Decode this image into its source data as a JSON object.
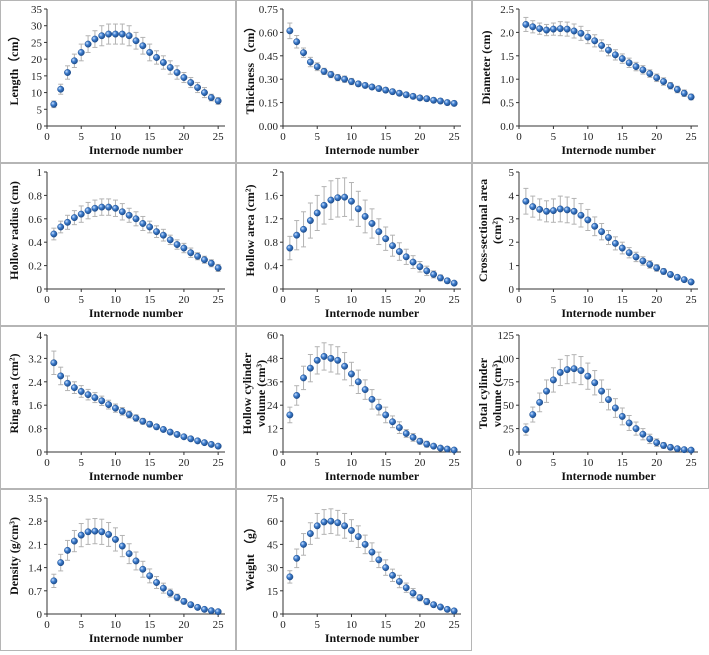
{
  "colors": {
    "marker": "#3f7fd0",
    "marker_edge": "#1f4f8f",
    "errorbar": "#b3b3b3",
    "axis": "#333333",
    "panel_border": "#b5b5b5"
  },
  "chart_data": [
    {
      "type": "scatter",
      "xlabel": "Internode number",
      "ylabel": "Length（cm）",
      "xlim": [
        0,
        26
      ],
      "ylim": [
        0,
        35
      ],
      "xticks": [
        0,
        5,
        10,
        15,
        20,
        25
      ],
      "yticks": [
        0,
        5,
        10,
        15,
        20,
        25,
        30,
        35
      ],
      "grid": false,
      "x": [
        1,
        2,
        3,
        4,
        5,
        6,
        7,
        8,
        9,
        10,
        11,
        12,
        13,
        14,
        15,
        16,
        17,
        18,
        19,
        20,
        21,
        22,
        23,
        24,
        25
      ],
      "y": [
        6.5,
        11,
        16,
        19.5,
        22,
        24.5,
        26,
        27,
        27.5,
        27.5,
        27.5,
        27,
        25.5,
        24,
        22,
        20.5,
        19,
        17.5,
        16,
        14.5,
        13,
        11.5,
        10,
        8.5,
        7.5
      ],
      "err": [
        1,
        1.5,
        2,
        2,
        2.5,
        2.5,
        2.5,
        3,
        3,
        3,
        3,
        3,
        2.5,
        2.5,
        2.5,
        2,
        2,
        2,
        2,
        1.5,
        1.5,
        1.5,
        1.5,
        1,
        1
      ]
    },
    {
      "type": "scatter",
      "xlabel": "Internode number",
      "ylabel": "Thickness （cm）",
      "xlim": [
        0,
        26
      ],
      "ylim": [
        0,
        0.75
      ],
      "xticks": [
        0,
        5,
        10,
        15,
        20,
        25
      ],
      "yticks": [
        "0.00",
        "0.15",
        "0.30",
        "0.45",
        "0.60",
        "0.75"
      ],
      "grid": false,
      "x": [
        1,
        2,
        3,
        4,
        5,
        6,
        7,
        8,
        9,
        10,
        11,
        12,
        13,
        14,
        15,
        16,
        17,
        18,
        19,
        20,
        21,
        22,
        23,
        24,
        25
      ],
      "y": [
        0.61,
        0.54,
        0.47,
        0.41,
        0.38,
        0.35,
        0.33,
        0.31,
        0.3,
        0.285,
        0.27,
        0.26,
        0.25,
        0.24,
        0.23,
        0.22,
        0.21,
        0.2,
        0.19,
        0.18,
        0.175,
        0.165,
        0.16,
        0.15,
        0.145
      ],
      "err": [
        0.05,
        0.04,
        0.03,
        0.03,
        0.025,
        0.02,
        0.02,
        0.02,
        0.02,
        0.02,
        0.015,
        0.015,
        0.015,
        0.015,
        0.015,
        0.015,
        0.015,
        0.015,
        0.015,
        0.015,
        0.015,
        0.015,
        0.015,
        0.015,
        0.015
      ]
    },
    {
      "type": "scatter",
      "xlabel": "Internode number",
      "ylabel": "Diameter (cm)",
      "xlim": [
        0,
        26
      ],
      "ylim": [
        0,
        2.5
      ],
      "xticks": [
        0,
        5,
        10,
        15,
        20,
        25
      ],
      "yticks": [
        "0.0",
        "0.5",
        "1.0",
        "1.5",
        "2.0",
        "2.5"
      ],
      "grid": false,
      "x": [
        1,
        2,
        3,
        4,
        5,
        6,
        7,
        8,
        9,
        10,
        11,
        12,
        13,
        14,
        15,
        16,
        17,
        18,
        19,
        20,
        21,
        22,
        23,
        24,
        25
      ],
      "y": [
        2.17,
        2.12,
        2.08,
        2.05,
        2.07,
        2.08,
        2.07,
        2.03,
        1.98,
        1.9,
        1.82,
        1.72,
        1.62,
        1.52,
        1.44,
        1.35,
        1.27,
        1.2,
        1.12,
        1.03,
        0.95,
        0.86,
        0.78,
        0.7,
        0.62
      ],
      "err": [
        0.15,
        0.13,
        0.12,
        0.12,
        0.13,
        0.15,
        0.15,
        0.15,
        0.15,
        0.14,
        0.13,
        0.12,
        0.12,
        0.11,
        0.1,
        0.1,
        0.09,
        0.09,
        0.08,
        0.08,
        0.08,
        0.07,
        0.07,
        0.07,
        0.06
      ]
    },
    {
      "type": "scatter",
      "xlabel": "Internode number",
      "ylabel": "Hollow radius (cm)",
      "xlim": [
        0,
        26
      ],
      "ylim": [
        0,
        1
      ],
      "xticks": [
        0,
        5,
        10,
        15,
        20,
        25
      ],
      "yticks": [
        "0",
        "0.2",
        "0.4",
        "0.6",
        "0.8",
        "1"
      ],
      "grid": false,
      "x": [
        1,
        2,
        3,
        4,
        5,
        6,
        7,
        8,
        9,
        10,
        11,
        12,
        13,
        14,
        15,
        16,
        17,
        18,
        19,
        20,
        21,
        22,
        23,
        24,
        25
      ],
      "y": [
        0.47,
        0.53,
        0.57,
        0.61,
        0.64,
        0.67,
        0.69,
        0.7,
        0.7,
        0.69,
        0.66,
        0.63,
        0.6,
        0.56,
        0.53,
        0.49,
        0.46,
        0.42,
        0.38,
        0.35,
        0.31,
        0.28,
        0.25,
        0.22,
        0.18
      ],
      "err": [
        0.05,
        0.05,
        0.06,
        0.06,
        0.07,
        0.07,
        0.07,
        0.07,
        0.07,
        0.07,
        0.07,
        0.06,
        0.06,
        0.06,
        0.05,
        0.05,
        0.05,
        0.04,
        0.04,
        0.04,
        0.04,
        0.03,
        0.03,
        0.03,
        0.03
      ]
    },
    {
      "type": "scatter",
      "xlabel": "Internode number",
      "ylabel": "Hollow area (cm²)",
      "xlim": [
        0,
        26
      ],
      "ylim": [
        0,
        2
      ],
      "xticks": [
        0,
        5,
        10,
        15,
        20,
        25
      ],
      "yticks": [
        "0",
        "0.4",
        "0.8",
        "1.2",
        "1.6",
        "2"
      ],
      "grid": false,
      "x": [
        1,
        2,
        3,
        4,
        5,
        6,
        7,
        8,
        9,
        10,
        11,
        12,
        13,
        14,
        15,
        16,
        17,
        18,
        19,
        20,
        21,
        22,
        23,
        24,
        25
      ],
      "y": [
        0.7,
        0.92,
        1.02,
        1.17,
        1.3,
        1.43,
        1.52,
        1.56,
        1.57,
        1.5,
        1.37,
        1.24,
        1.12,
        0.98,
        0.86,
        0.74,
        0.64,
        0.55,
        0.46,
        0.38,
        0.31,
        0.25,
        0.19,
        0.14,
        0.1
      ],
      "err": [
        0.2,
        0.25,
        0.3,
        0.3,
        0.3,
        0.32,
        0.33,
        0.33,
        0.33,
        0.32,
        0.3,
        0.28,
        0.25,
        0.22,
        0.2,
        0.18,
        0.15,
        0.13,
        0.11,
        0.09,
        0.08,
        0.06,
        0.05,
        0.04,
        0.03
      ]
    },
    {
      "type": "scatter",
      "xlabel": "Internode number",
      "ylabel": "Cross-sectional area (cm²)",
      "xlim": [
        0,
        26
      ],
      "ylim": [
        0,
        5
      ],
      "xticks": [
        0,
        5,
        10,
        15,
        20,
        25
      ],
      "yticks": [
        "0",
        "1",
        "2",
        "3",
        "4",
        "5"
      ],
      "grid": false,
      "x": [
        1,
        2,
        3,
        4,
        5,
        6,
        7,
        8,
        9,
        10,
        11,
        12,
        13,
        14,
        15,
        16,
        17,
        18,
        19,
        20,
        21,
        22,
        23,
        24,
        25
      ],
      "y": [
        3.75,
        3.52,
        3.4,
        3.32,
        3.35,
        3.42,
        3.38,
        3.32,
        3.15,
        2.95,
        2.68,
        2.45,
        2.2,
        1.95,
        1.75,
        1.55,
        1.37,
        1.2,
        1.05,
        0.9,
        0.75,
        0.62,
        0.5,
        0.4,
        0.3
      ],
      "err": [
        0.55,
        0.45,
        0.45,
        0.45,
        0.5,
        0.55,
        0.55,
        0.55,
        0.5,
        0.45,
        0.4,
        0.35,
        0.3,
        0.28,
        0.25,
        0.22,
        0.2,
        0.18,
        0.16,
        0.14,
        0.12,
        0.1,
        0.08,
        0.07,
        0.06
      ]
    },
    {
      "type": "scatter",
      "xlabel": "Internode number",
      "ylabel": "Ring area (cm²)",
      "xlim": [
        0,
        26
      ],
      "ylim": [
        0,
        4
      ],
      "xticks": [
        0,
        5,
        10,
        15,
        20,
        25
      ],
      "yticks": [
        "0",
        "0.8",
        "1.6",
        "2.4",
        "3.2",
        "4"
      ],
      "grid": false,
      "x": [
        1,
        2,
        3,
        4,
        5,
        6,
        7,
        8,
        9,
        10,
        11,
        12,
        13,
        14,
        15,
        16,
        17,
        18,
        19,
        20,
        21,
        22,
        23,
        24,
        25
      ],
      "y": [
        3.05,
        2.6,
        2.35,
        2.2,
        2.07,
        1.96,
        1.86,
        1.75,
        1.62,
        1.5,
        1.39,
        1.28,
        1.16,
        1.05,
        0.95,
        0.86,
        0.77,
        0.68,
        0.6,
        0.52,
        0.45,
        0.38,
        0.32,
        0.26,
        0.2
      ],
      "err": [
        0.4,
        0.3,
        0.25,
        0.2,
        0.2,
        0.18,
        0.17,
        0.16,
        0.15,
        0.14,
        0.13,
        0.12,
        0.11,
        0.1,
        0.09,
        0.08,
        0.07,
        0.06,
        0.06,
        0.05,
        0.05,
        0.04,
        0.04,
        0.04,
        0.03
      ]
    },
    {
      "type": "scatter",
      "xlabel": "Internode number",
      "ylabel": "Hollow cylinder volume (cm³)",
      "xlim": [
        0,
        26
      ],
      "ylim": [
        0,
        60
      ],
      "xticks": [
        0,
        5,
        10,
        15,
        20,
        25
      ],
      "yticks": [
        "0",
        "12",
        "24",
        "36",
        "48",
        "60"
      ],
      "grid": false,
      "x": [
        1,
        2,
        3,
        4,
        5,
        6,
        7,
        8,
        9,
        10,
        11,
        12,
        13,
        14,
        15,
        16,
        17,
        18,
        19,
        20,
        21,
        22,
        23,
        24,
        25
      ],
      "y": [
        19,
        29,
        38,
        43,
        47,
        49,
        48,
        47,
        44,
        40,
        36,
        32,
        27,
        23,
        19,
        15.5,
        12.5,
        9.5,
        7.5,
        5.5,
        4,
        3,
        2,
        1.5,
        1
      ],
      "err": [
        4,
        5,
        6,
        7,
        7,
        7,
        7,
        7,
        7,
        6,
        6,
        5,
        5,
        4,
        4,
        3,
        3,
        2,
        2,
        1.5,
        1.5,
        1,
        1,
        1,
        0.5
      ]
    },
    {
      "type": "scatter",
      "xlabel": "Internode number",
      "ylabel": "Total cylinder volume (cm³)",
      "xlim": [
        0,
        26
      ],
      "ylim": [
        0,
        125
      ],
      "xticks": [
        0,
        5,
        10,
        15,
        20,
        25
      ],
      "yticks": [
        "0",
        "25",
        "50",
        "75",
        "100",
        "125"
      ],
      "grid": false,
      "x": [
        1,
        2,
        3,
        4,
        5,
        6,
        7,
        8,
        9,
        10,
        11,
        12,
        13,
        14,
        15,
        16,
        17,
        18,
        19,
        20,
        21,
        22,
        23,
        24,
        25
      ],
      "y": [
        24,
        40,
        53,
        65,
        77,
        85,
        88,
        89,
        87,
        81,
        74,
        65,
        56,
        47,
        38,
        31,
        25,
        19,
        14,
        10,
        7,
        5,
        3.5,
        2.5,
        2
      ],
      "err": [
        6,
        8,
        10,
        12,
        13,
        14,
        15,
        15,
        15,
        14,
        13,
        12,
        11,
        10,
        9,
        8,
        7,
        6,
        5,
        4,
        3,
        2.5,
        2,
        1.5,
        1
      ]
    },
    {
      "type": "scatter",
      "xlabel": "Internode number",
      "ylabel": "Density (g/cm³)",
      "xlim": [
        0,
        26
      ],
      "ylim": [
        0,
        3.5
      ],
      "xticks": [
        0,
        5,
        10,
        15,
        20,
        25
      ],
      "yticks": [
        "0",
        "0.7",
        "1.4",
        "2.1",
        "2.8",
        "3.5"
      ],
      "grid": false,
      "x": [
        1,
        2,
        3,
        4,
        5,
        6,
        7,
        8,
        9,
        10,
        11,
        12,
        13,
        14,
        15,
        16,
        17,
        18,
        19,
        20,
        21,
        22,
        23,
        24,
        25
      ],
      "y": [
        1.0,
        1.55,
        1.92,
        2.2,
        2.38,
        2.48,
        2.5,
        2.48,
        2.4,
        2.25,
        2.05,
        1.82,
        1.6,
        1.35,
        1.15,
        0.95,
        0.78,
        0.63,
        0.5,
        0.38,
        0.28,
        0.2,
        0.14,
        0.1,
        0.07
      ],
      "err": [
        0.2,
        0.25,
        0.3,
        0.32,
        0.35,
        0.38,
        0.38,
        0.38,
        0.36,
        0.35,
        0.32,
        0.3,
        0.27,
        0.24,
        0.21,
        0.18,
        0.15,
        0.12,
        0.1,
        0.08,
        0.06,
        0.05,
        0.04,
        0.03,
        0.02
      ]
    },
    {
      "type": "scatter",
      "xlabel": "Internode number",
      "ylabel": "Weight （g）",
      "xlim": [
        0,
        26
      ],
      "ylim": [
        0,
        75
      ],
      "xticks": [
        0,
        5,
        10,
        15,
        20,
        25
      ],
      "yticks": [
        "0",
        "15",
        "30",
        "45",
        "60",
        "75"
      ],
      "grid": false,
      "x": [
        1,
        2,
        3,
        4,
        5,
        6,
        7,
        8,
        9,
        10,
        11,
        12,
        13,
        14,
        15,
        16,
        17,
        18,
        19,
        20,
        21,
        22,
        23,
        24,
        25
      ],
      "y": [
        24,
        36,
        45,
        52,
        57,
        59.5,
        60,
        59,
        57,
        54,
        50,
        45,
        40,
        35,
        30,
        25,
        21,
        17,
        13.5,
        10.5,
        8,
        6,
        4.5,
        3,
        2
      ],
      "err": [
        4,
        6,
        7,
        7,
        8,
        8,
        8,
        8,
        8,
        7,
        7,
        6,
        6,
        5,
        5,
        4,
        4,
        3,
        3,
        2,
        2,
        1.5,
        1,
        1,
        1
      ]
    }
  ]
}
